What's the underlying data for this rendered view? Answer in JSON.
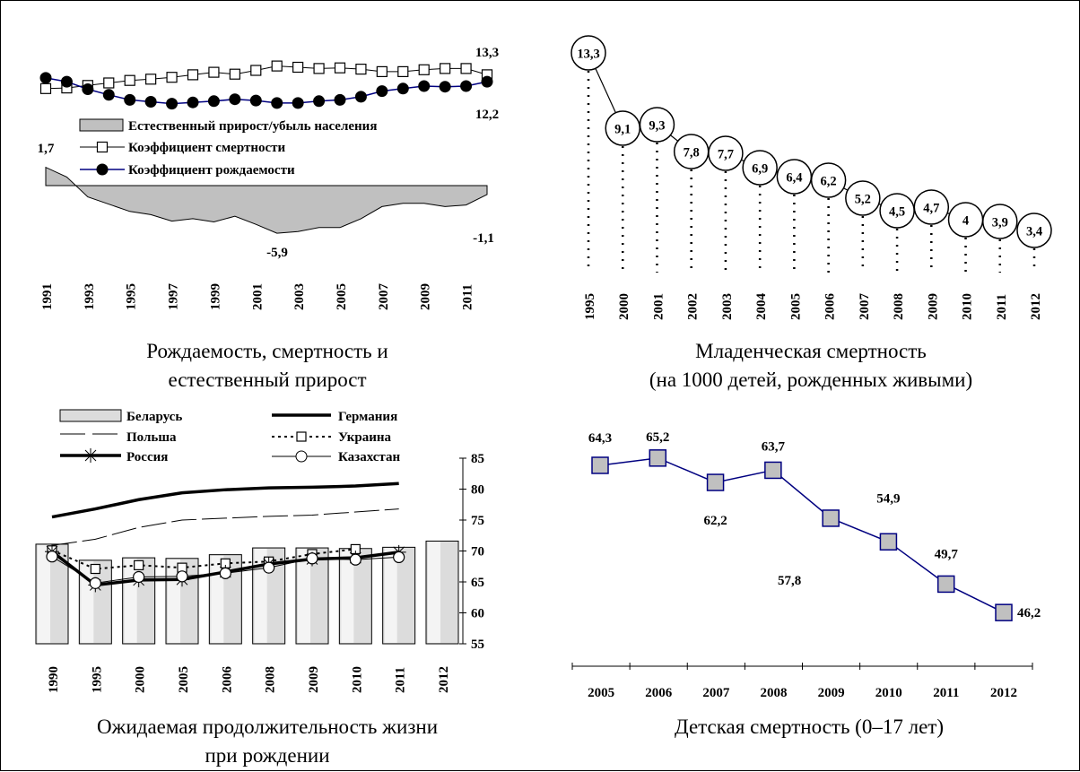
{
  "chart_data": [
    {
      "type": "area",
      "title": "Рождаемость, смертность и естественный прирост",
      "title_lines": [
        "Рождаемость, смертность и",
        "естественный прирост"
      ],
      "x": [
        1991,
        1992,
        1993,
        1994,
        1995,
        1996,
        1997,
        1998,
        1999,
        2000,
        2001,
        2002,
        2003,
        2004,
        2005,
        2006,
        2007,
        2008,
        2009,
        2010,
        2011,
        2012
      ],
      "x_tick_labels": [
        "1991",
        "1993",
        "1995",
        "1997",
        "1999",
        "2001",
        "2003",
        "2005",
        "2007",
        "2009",
        "2011"
      ],
      "series": [
        {
          "name": "Естественный прирост/убыль населения",
          "kind": "area",
          "color": "#c0c0c0",
          "values": [
            1.7,
            0.8,
            -1.4,
            -2.3,
            -3.2,
            -3.6,
            -4.4,
            -4.1,
            -4.5,
            -3.8,
            -4.8,
            -5.9,
            -5.7,
            -5.2,
            -5.2,
            -4.1,
            -2.6,
            -2.2,
            -2.2,
            -2.6,
            -2.4,
            -1.1
          ]
        },
        {
          "name": "Коэффициент смертности",
          "kind": "line",
          "marker": "square",
          "values": [
            11.1,
            11.2,
            11.6,
            12.0,
            12.4,
            12.6,
            12.9,
            13.3,
            13.7,
            13.4,
            14.0,
            14.7,
            14.5,
            14.3,
            14.4,
            14.2,
            13.8,
            13.8,
            14.1,
            14.3,
            14.3,
            13.3
          ]
        },
        {
          "name": "Коэффициент рождаемости",
          "kind": "line",
          "marker": "circle",
          "color": "#000080",
          "values": [
            12.8,
            12.2,
            11.0,
            10.1,
            9.3,
            9.0,
            8.7,
            8.9,
            9.1,
            9.4,
            9.2,
            8.8,
            8.8,
            9.1,
            9.3,
            9.8,
            10.7,
            11.1,
            11.5,
            11.4,
            11.5,
            12.2
          ]
        }
      ],
      "labels": {
        "area_first": "1,7",
        "area_min": "-5,9",
        "area_last": "-1,1",
        "death_last": "13,3",
        "birth_last": "12,2"
      },
      "legend": "middle"
    },
    {
      "type": "line",
      "title": "Младенческая смертность",
      "subtitle": "(на 1000 детей, рожденных живыми)",
      "categories": [
        "1995",
        "2000",
        "2001",
        "2002",
        "2003",
        "2004",
        "2005",
        "2006",
        "2007",
        "2008",
        "2009",
        "2010",
        "2011",
        "2012"
      ],
      "values": [
        13.3,
        9.1,
        9.3,
        7.8,
        7.7,
        6.9,
        6.4,
        6.2,
        5.2,
        4.5,
        4.7,
        4.0,
        3.9,
        3.4
      ],
      "data_labels": [
        "13,3",
        "9,1",
        "9,3",
        "7,8",
        "7,7",
        "6,9",
        "6,4",
        "6,2",
        "5,2",
        "4,5",
        "4,7",
        "4",
        "3,9",
        "3,4"
      ]
    },
    {
      "type": "bar",
      "title": "Ожидаемая продолжительность жизни при рождении",
      "title_lines": [
        "Ожидаемая продолжительность жизни",
        "при рождении"
      ],
      "categories": [
        "1990",
        "1995",
        "2000",
        "2005",
        "2006",
        "2008",
        "2009",
        "2010",
        "2011",
        "2012"
      ],
      "ylim": [
        55,
        85
      ],
      "y_ticks": [
        "55",
        "60",
        "65",
        "70",
        "75",
        "80",
        "85"
      ],
      "series": [
        {
          "name": "Беларусь",
          "kind": "bar",
          "values": [
            71.1,
            68.5,
            68.9,
            68.8,
            69.4,
            70.5,
            70.5,
            70.4,
            70.6,
            71.6
          ]
        },
        {
          "name": "Германия",
          "kind": "line",
          "values": [
            75.5,
            76.8,
            78.3,
            79.4,
            79.9,
            80.2,
            80.3,
            80.5,
            80.9,
            null
          ]
        },
        {
          "name": "Польша",
          "kind": "line",
          "values": [
            70.9,
            71.9,
            73.8,
            75.0,
            75.3,
            75.6,
            75.8,
            76.3,
            76.8,
            null
          ]
        },
        {
          "name": "Украина",
          "kind": "line",
          "values": [
            70.1,
            67.1,
            67.7,
            67.3,
            68.0,
            68.3,
            69.5,
            70.3,
            null,
            null
          ]
        },
        {
          "name": "Россия",
          "kind": "line",
          "values": [
            69.9,
            64.5,
            65.3,
            65.4,
            66.6,
            67.9,
            68.7,
            68.9,
            69.8,
            null
          ]
        },
        {
          "name": "Казахстан",
          "kind": "line",
          "values": [
            69.1,
            64.8,
            65.8,
            65.9,
            66.4,
            67.3,
            68.8,
            68.6,
            69.0,
            null
          ]
        }
      ]
    },
    {
      "type": "line",
      "title": "Детская смертность (0–17 лет)",
      "categories": [
        "2005",
        "2006",
        "2007",
        "2008",
        "2009",
        "2010",
        "2011",
        "2012"
      ],
      "values": [
        64.3,
        65.2,
        62.2,
        63.7,
        57.8,
        54.9,
        49.7,
        46.2
      ],
      "data_labels": [
        "64,3",
        "65,2",
        "62,2",
        "63,7",
        "57,8",
        "54,9",
        "49,7",
        "46,2"
      ],
      "colors": {
        "line": "#000080",
        "marker_fill": "#c0c0c0"
      }
    }
  ]
}
